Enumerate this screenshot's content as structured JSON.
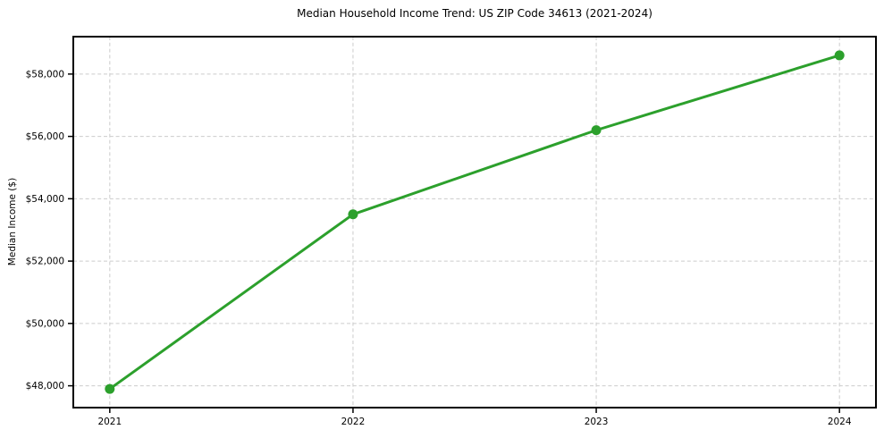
{
  "chart_data": {
    "type": "line",
    "title": "Median Household Income Trend: US ZIP Code 34613 (2021-2024)",
    "xlabel": "",
    "ylabel": "Median Income ($)",
    "x": [
      2021,
      2022,
      2023,
      2024
    ],
    "categories": [
      "2021",
      "2022",
      "2023",
      "2024"
    ],
    "series": [
      {
        "name": "Median Household Income",
        "values": [
          47900,
          53500,
          56200,
          58600
        ]
      }
    ],
    "y_ticks": [
      48000,
      50000,
      52000,
      54000,
      56000,
      58000
    ],
    "y_tick_labels": [
      "$48,000",
      "$50,000",
      "$52,000",
      "$54,000",
      "$56,000",
      "$58,000"
    ],
    "xlim": [
      2020.85,
      2024.15
    ],
    "ylim": [
      47300,
      59200
    ],
    "grid": true,
    "legend": false,
    "colors": {
      "line": "#2ca02c",
      "marker": "#2ca02c",
      "grid": "#cccccc",
      "spine": "#000000",
      "background": "#ffffff",
      "text": "#000000"
    },
    "style": {
      "line_width": 3,
      "marker_radius": 5.5,
      "grid_dash": "4 2.8"
    }
  }
}
